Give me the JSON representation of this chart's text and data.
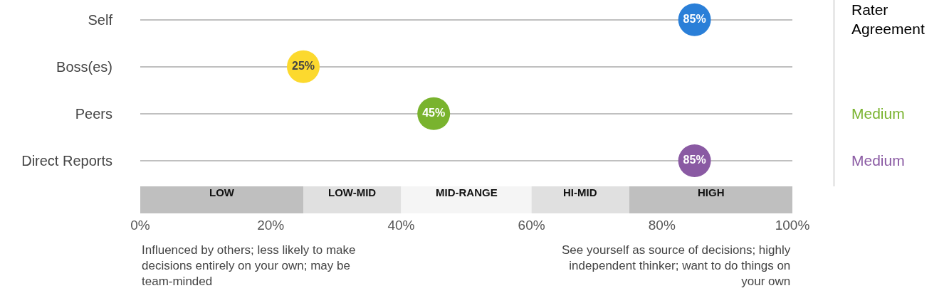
{
  "chart_data": {
    "type": "scatter",
    "orientation": "horizontal",
    "categories": [
      "Self",
      "Boss(es)",
      "Peers",
      "Direct Reports"
    ],
    "values": [
      85,
      25,
      45,
      85
    ],
    "colors": [
      "#2a7fd8",
      "#fcd92e",
      "#79b32e",
      "#8a5aa3"
    ],
    "value_labels": [
      "85%",
      "25%",
      "45%",
      "85%"
    ],
    "marker": "circle",
    "xlim": [
      0,
      100
    ],
    "xticks": [
      {
        "value": 0,
        "label": "0%"
      },
      {
        "value": 20,
        "label": "20%"
      },
      {
        "value": 40,
        "label": "40%"
      },
      {
        "value": 60,
        "label": "60%"
      },
      {
        "value": 80,
        "label": "80%"
      },
      {
        "value": 100,
        "label": "100%"
      }
    ],
    "grid": "y",
    "bands": [
      {
        "axis": "x",
        "from": 0,
        "to": 25,
        "label": "LOW",
        "color": "#bfbfbf"
      },
      {
        "axis": "x",
        "from": 25,
        "to": 40,
        "label": "LOW-MID",
        "color": "#e0e0e0"
      },
      {
        "axis": "x",
        "from": 40,
        "to": 60,
        "label": "MID-RANGE",
        "color": "#f5f5f5"
      },
      {
        "axis": "x",
        "from": 60,
        "to": 75,
        "label": "HI-MID",
        "color": "#e0e0e0"
      },
      {
        "axis": "x",
        "from": 75,
        "to": 100,
        "label": "HIGH",
        "color": "#bfbfbf"
      }
    ],
    "annotations": [
      "Rater Agreement",
      "Medium",
      "Medium",
      "Influenced by others; less likely to make decisions entirely on your own; may be team-minded",
      "See yourself as source of decisions; highly independent thinker; want to do things on your own"
    ]
  }
}
